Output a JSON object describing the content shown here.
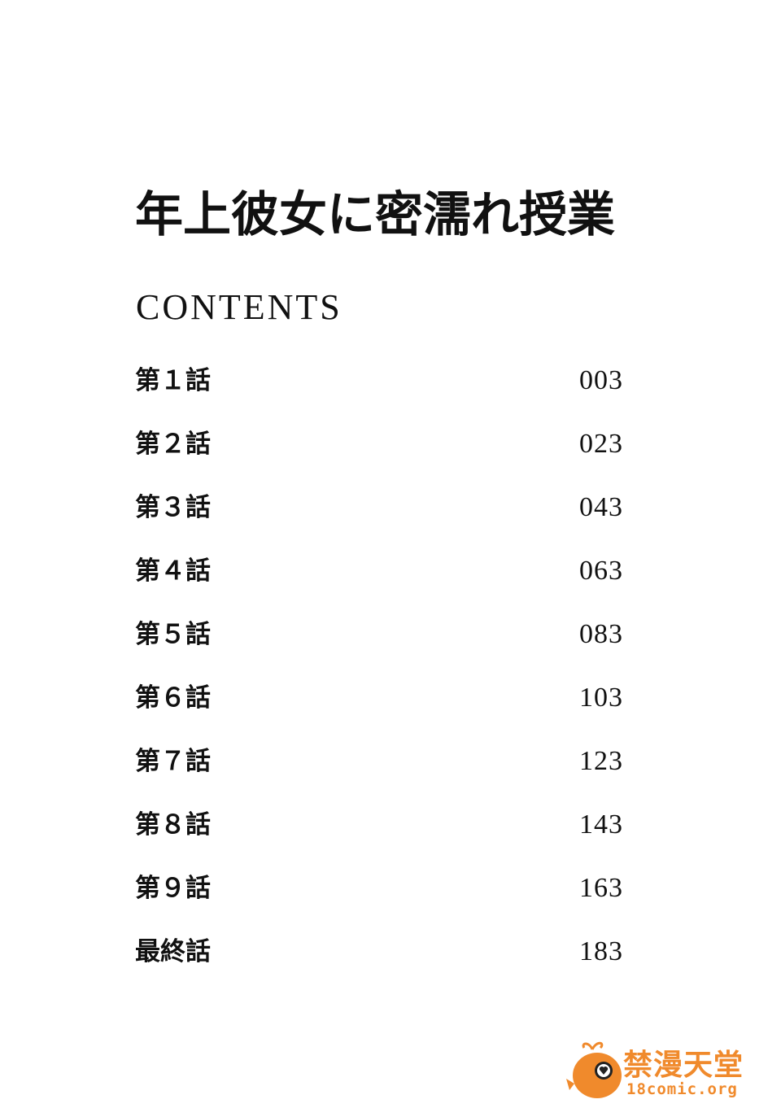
{
  "title": "年上彼女に密濡れ授業",
  "contents_heading": "CONTENTS",
  "toc": [
    {
      "chapter": "第１話",
      "page": "003"
    },
    {
      "chapter": "第２話",
      "page": "023"
    },
    {
      "chapter": "第３話",
      "page": "043"
    },
    {
      "chapter": "第４話",
      "page": "063"
    },
    {
      "chapter": "第５話",
      "page": "083"
    },
    {
      "chapter": "第６話",
      "page": "103"
    },
    {
      "chapter": "第７話",
      "page": "123"
    },
    {
      "chapter": "第８話",
      "page": "143"
    },
    {
      "chapter": "第９話",
      "page": "163"
    },
    {
      "chapter": "最終話",
      "page": "183"
    }
  ],
  "watermark": {
    "name": "禁漫天堂",
    "url": "18comic.org",
    "color": "#f08a2c",
    "icon": "orange-whale-heart-logo"
  }
}
